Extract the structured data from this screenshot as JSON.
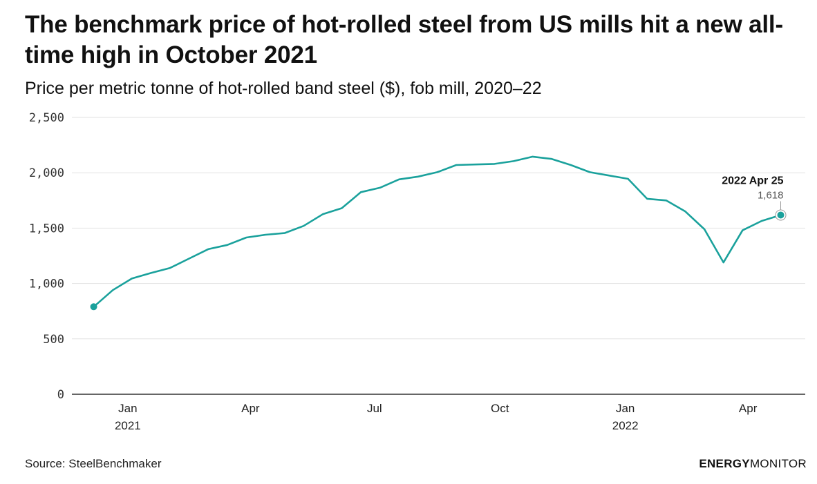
{
  "title": "The benchmark price of hot-rolled steel from US mills hit a new all-time high in October 2021",
  "subtitle": "Price per metric tonne of hot-rolled band steel ($), fob mill, 2020–22",
  "source": "Source: SteelBenchmaker",
  "logo": {
    "part1": "ENERGY",
    "part2": "MONITOR"
  },
  "colors": {
    "line": "#1aa19c",
    "grid": "#e2e2e2",
    "axis": "#333333",
    "text": "#111111"
  },
  "chart_data": {
    "type": "line",
    "title": "The benchmark price of hot-rolled steel from US mills hit a new all-time high in October 2021",
    "subtitle": "Price per metric tonne of hot-rolled band steel ($), fob mill, 2020–22",
    "xlabel": "",
    "ylabel": "",
    "ylim": [
      0,
      2500
    ],
    "xlim": [
      "2020-11-21",
      "2022-05-13"
    ],
    "yticks": [
      0,
      500,
      1000,
      1500,
      2000,
      2500
    ],
    "ytick_labels": [
      "0",
      "500",
      "1,000",
      "1,500",
      "2,000",
      "2,500"
    ],
    "xticks": [
      {
        "date": "2021-01-01",
        "label": "Jan",
        "sublabel": "2021"
      },
      {
        "date": "2021-04-01",
        "label": "Apr",
        "sublabel": ""
      },
      {
        "date": "2021-07-01",
        "label": "Jul",
        "sublabel": ""
      },
      {
        "date": "2021-10-01",
        "label": "Oct",
        "sublabel": ""
      },
      {
        "date": "2022-01-01",
        "label": "Jan",
        "sublabel": "2022"
      },
      {
        "date": "2022-04-01",
        "label": "Apr",
        "sublabel": ""
      }
    ],
    "grid": true,
    "series": [
      {
        "points": [
          {
            "x": "2020-12-07",
            "y": 790
          },
          {
            "x": "2020-12-21",
            "y": 940
          },
          {
            "x": "2021-01-04",
            "y": 1045
          },
          {
            "x": "2021-01-18",
            "y": 1095
          },
          {
            "x": "2021-02-01",
            "y": 1140
          },
          {
            "x": "2021-02-15",
            "y": 1225
          },
          {
            "x": "2021-03-01",
            "y": 1310
          },
          {
            "x": "2021-03-15",
            "y": 1348
          },
          {
            "x": "2021-03-29",
            "y": 1415
          },
          {
            "x": "2021-04-12",
            "y": 1440
          },
          {
            "x": "2021-04-26",
            "y": 1455
          },
          {
            "x": "2021-05-10",
            "y": 1520
          },
          {
            "x": "2021-05-24",
            "y": 1625
          },
          {
            "x": "2021-06-07",
            "y": 1680
          },
          {
            "x": "2021-06-21",
            "y": 1825
          },
          {
            "x": "2021-07-05",
            "y": 1865
          },
          {
            "x": "2021-07-19",
            "y": 1940
          },
          {
            "x": "2021-08-02",
            "y": 1965
          },
          {
            "x": "2021-08-16",
            "y": 2005
          },
          {
            "x": "2021-08-30",
            "y": 2070
          },
          {
            "x": "2021-09-13",
            "y": 2075
          },
          {
            "x": "2021-09-27",
            "y": 2080
          },
          {
            "x": "2021-10-11",
            "y": 2105
          },
          {
            "x": "2021-10-25",
            "y": 2145
          },
          {
            "x": "2021-11-08",
            "y": 2125
          },
          {
            "x": "2021-11-22",
            "y": 2070
          },
          {
            "x": "2021-12-06",
            "y": 2005
          },
          {
            "x": "2021-12-20",
            "y": 1975
          },
          {
            "x": "2022-01-03",
            "y": 1945
          },
          {
            "x": "2022-01-17",
            "y": 1765
          },
          {
            "x": "2022-01-31",
            "y": 1750
          },
          {
            "x": "2022-02-14",
            "y": 1650
          },
          {
            "x": "2022-02-28",
            "y": 1490
          },
          {
            "x": "2022-03-14",
            "y": 1190
          },
          {
            "x": "2022-03-28",
            "y": 1480
          },
          {
            "x": "2022-04-11",
            "y": 1565
          },
          {
            "x": "2022-04-25",
            "y": 1618
          }
        ]
      }
    ],
    "annotation": {
      "x": "2022-04-25",
      "y": 1618,
      "label": "2022 Apr 25",
      "value_label": "1,618"
    }
  }
}
